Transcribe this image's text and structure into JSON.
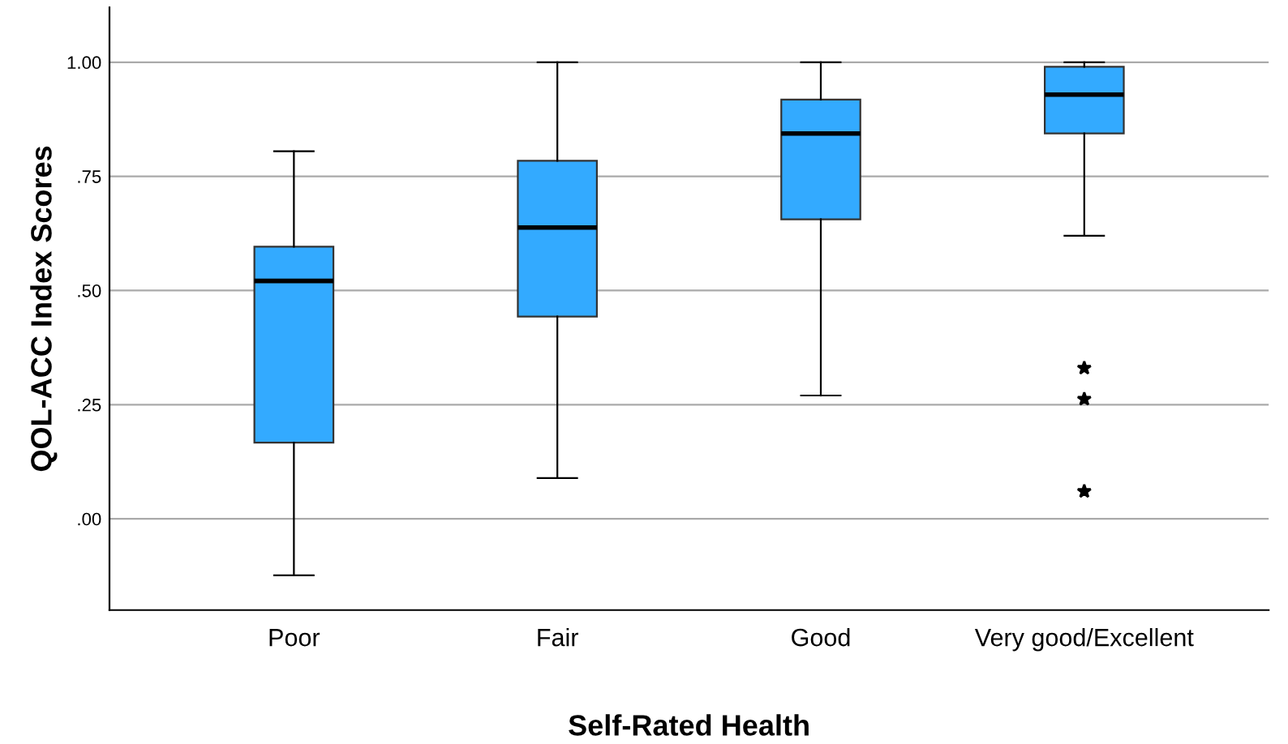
{
  "chart_data": {
    "type": "box",
    "xlabel": "Self-Rated Health",
    "ylabel": "QOL-ACC Index Scores",
    "categories": [
      "Poor",
      "Fair",
      "Good",
      "Very good/Excellent"
    ],
    "color": "#33aaff",
    "boxes": [
      {
        "low": -0.124,
        "q1": 0.167,
        "median": 0.521,
        "q3": 0.596,
        "high": 0.805
      },
      {
        "low": 0.089,
        "q1": 0.443,
        "median": 0.638,
        "q3": 0.784,
        "high": 1.0
      },
      {
        "low": 0.27,
        "q1": 0.656,
        "median": 0.844,
        "q3": 0.918,
        "high": 1.0
      },
      {
        "low": 0.62,
        "q1": 0.844,
        "median": 0.929,
        "q3": 0.99,
        "high": 1.0,
        "outliers": [
          0.33,
          0.262,
          0.06
        ]
      }
    ],
    "ylim": [
      -0.2,
      1.12
    ],
    "yticks": [
      {
        "value": 0,
        "label": ".00"
      },
      {
        "value": 0.25,
        "label": ".25"
      },
      {
        "value": 0.5,
        "label": ".50"
      },
      {
        "value": 0.75,
        "label": ".75"
      },
      {
        "value": 1,
        "label": "1.00"
      }
    ],
    "grid": "y",
    "marker": "star"
  }
}
